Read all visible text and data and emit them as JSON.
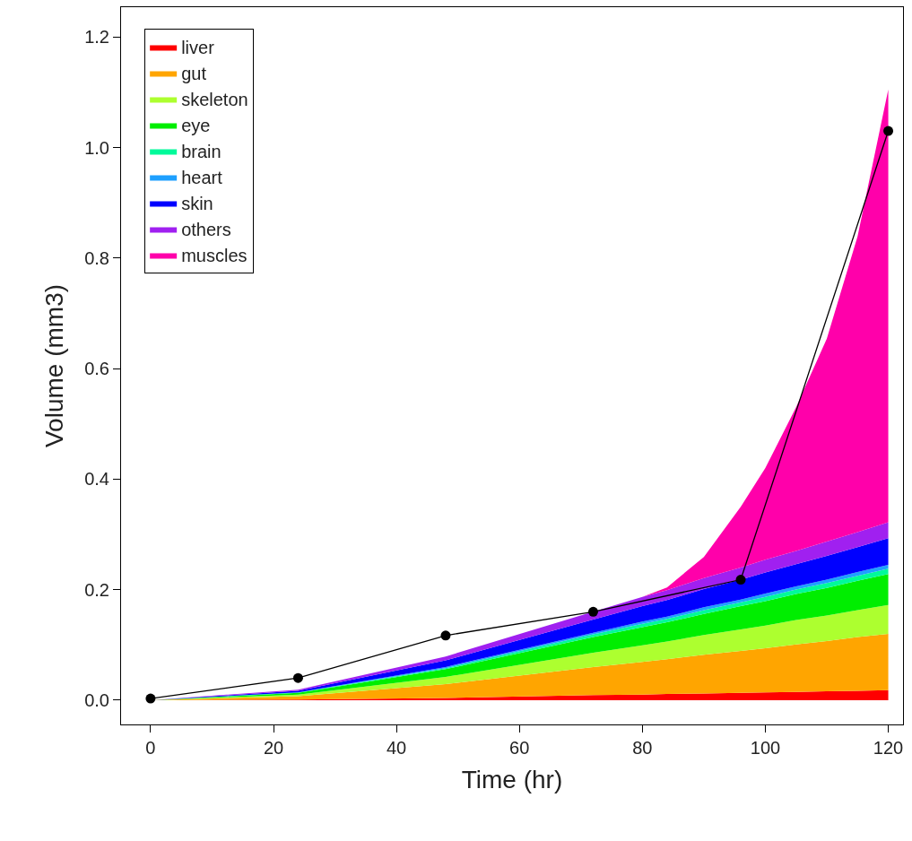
{
  "chart_data": {
    "type": "area",
    "stacked": true,
    "xlabel": "Time (hr)",
    "ylabel": "Volume (mm3)",
    "xlim": [
      -4.8,
      122.4
    ],
    "ylim": [
      -0.044,
      1.254
    ],
    "xticks": [
      0,
      20,
      40,
      60,
      80,
      100,
      120
    ],
    "yticks": [
      {
        "value": 0,
        "label": "0.0"
      },
      {
        "value": 0.2,
        "label": "0.2"
      },
      {
        "value": 0.4,
        "label": "0.4"
      },
      {
        "value": 0.6,
        "label": "0.6"
      },
      {
        "value": 0.8,
        "label": "0.8"
      },
      {
        "value": 1,
        "label": "1.0"
      },
      {
        "value": 1.2,
        "label": "1.2"
      }
    ],
    "legend": "top left",
    "line_style": "solid",
    "x": [
      0,
      24,
      48,
      72,
      80,
      84,
      90,
      96,
      100,
      105,
      110,
      115,
      120
    ],
    "series": [
      {
        "name": "liver",
        "color": "#ff0000",
        "values": [
          0,
          0.001,
          0.004,
          0.009,
          0.01,
          0.011,
          0.012,
          0.013,
          0.014,
          0.015,
          0.016,
          0.017,
          0.018
        ]
      },
      {
        "name": "gut",
        "color": "#ffa500",
        "values": [
          0,
          0.006,
          0.025,
          0.051,
          0.059,
          0.063,
          0.07,
          0.076,
          0.08,
          0.086,
          0.091,
          0.097,
          0.102
        ]
      },
      {
        "name": "skeleton",
        "color": "#adff2f",
        "values": [
          0,
          0.003,
          0.013,
          0.026,
          0.03,
          0.032,
          0.036,
          0.039,
          0.041,
          0.044,
          0.046,
          0.049,
          0.052
        ]
      },
      {
        "name": "eye",
        "color": "#00ee00",
        "values": [
          0,
          0.003,
          0.014,
          0.028,
          0.033,
          0.035,
          0.038,
          0.042,
          0.044,
          0.047,
          0.05,
          0.053,
          0.056
        ]
      },
      {
        "name": "brain",
        "color": "#00fa9a",
        "values": [
          0,
          0.001,
          0.002,
          0.005,
          0.006,
          0.006,
          0.007,
          0.007,
          0.008,
          0.008,
          0.009,
          0.009,
          0.01
        ]
      },
      {
        "name": "heart",
        "color": "#1ea0ff",
        "values": [
          0,
          0,
          0.002,
          0.003,
          0.004,
          0.004,
          0.005,
          0.005,
          0.006,
          0.006,
          0.006,
          0.007,
          0.007
        ]
      },
      {
        "name": "skin",
        "color": "#0000ff",
        "values": [
          0,
          0.003,
          0.012,
          0.024,
          0.028,
          0.03,
          0.033,
          0.036,
          0.038,
          0.04,
          0.043,
          0.045,
          0.048
        ]
      },
      {
        "name": "others",
        "color": "#a020f0",
        "values": [
          0,
          0.002,
          0.007,
          0.014,
          0.017,
          0.018,
          0.02,
          0.022,
          0.023,
          0.024,
          0.026,
          0.027,
          0.029
        ]
      },
      {
        "name": "muscles",
        "color": "#ff00aa",
        "values": [
          0,
          0,
          0,
          0,
          0,
          0.005,
          0.038,
          0.11,
          0.166,
          0.26,
          0.367,
          0.535,
          0.783
        ]
      },
      {
        "type": "line",
        "marker": "circle",
        "color": "#000000",
        "x": [
          0,
          24,
          48,
          72,
          96,
          120
        ],
        "values": [
          0.003,
          0.04,
          0.117,
          0.16,
          0.218,
          1.03
        ]
      }
    ]
  }
}
